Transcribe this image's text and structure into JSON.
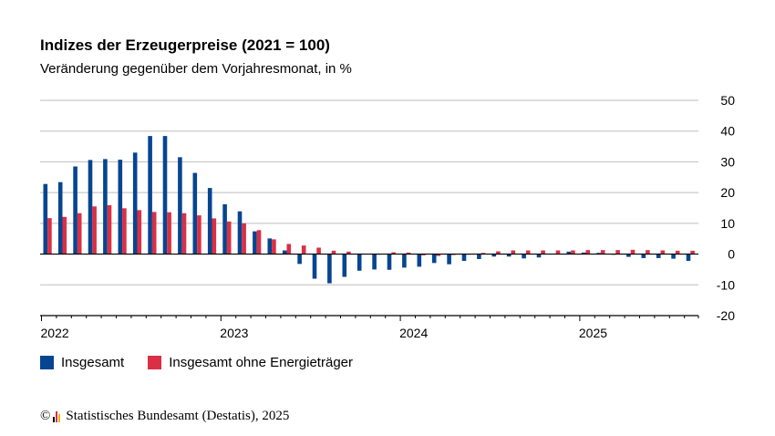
{
  "title": "Indizes der Erzeugerpreise (2021 = 100)",
  "subtitle": "Veränderung gegenüber dem Vorjahresmonat, in %",
  "legend": {
    "series1": "Insgesamt",
    "series2": "Insgesamt ohne Energieträger"
  },
  "source": {
    "symbol": "©",
    "text": "Statistisches Bundesamt (Destatis), 2025"
  },
  "colors": {
    "series1": "#064591",
    "series2": "#DA2F45",
    "grid": "#BEBEBE",
    "axis": "#000000"
  },
  "chart_data": {
    "type": "bar",
    "ylim": [
      -20,
      50
    ],
    "yticks": [
      -20,
      -10,
      0,
      10,
      20,
      30,
      40,
      50
    ],
    "grid": true,
    "legend_position": "bottom-left",
    "year_labels": [
      "2022",
      "2023",
      "2024",
      "2025"
    ],
    "categories": [
      "2022-01",
      "2022-02",
      "2022-03",
      "2022-04",
      "2022-05",
      "2022-06",
      "2022-07",
      "2022-08",
      "2022-09",
      "2022-10",
      "2022-11",
      "2022-12",
      "2023-01",
      "2023-02",
      "2023-03",
      "2023-04",
      "2023-05",
      "2023-06",
      "2023-07",
      "2023-08",
      "2023-09",
      "2023-10",
      "2023-11",
      "2023-12",
      "2024-01",
      "2024-02",
      "2024-03",
      "2024-04",
      "2024-05",
      "2024-06",
      "2024-07",
      "2024-08",
      "2024-09",
      "2024-10",
      "2024-11",
      "2024-12",
      "2025-01",
      "2025-02",
      "2025-03",
      "2025-04",
      "2025-05",
      "2025-06",
      "2025-07",
      "2025-08"
    ],
    "series": [
      {
        "name": "Insgesamt",
        "values": [
          22.8,
          23.4,
          28.5,
          30.6,
          30.9,
          30.7,
          33.0,
          38.4,
          38.4,
          31.5,
          26.4,
          21.5,
          16.2,
          13.9,
          7.4,
          5.1,
          1.2,
          -3.2,
          -8.0,
          -9.5,
          -7.4,
          -5.4,
          -5.0,
          -5.1,
          -4.4,
          -4.1,
          -2.9,
          -3.3,
          -2.2,
          -1.6,
          -0.8,
          -0.8,
          -1.4,
          -1.1,
          0.1,
          0.8,
          0.5,
          0.4,
          -0.2,
          -0.9,
          -1.3,
          -1.3,
          -1.5,
          -2.2
        ]
      },
      {
        "name": "Insgesamt ohne Energieträger",
        "values": [
          11.7,
          12.1,
          13.3,
          15.5,
          15.9,
          14.9,
          14.3,
          13.7,
          13.6,
          13.3,
          12.6,
          11.6,
          10.6,
          10.0,
          7.8,
          4.8,
          3.3,
          2.8,
          2.1,
          1.1,
          0.8,
          0.1,
          0.0,
          0.6,
          0.5,
          -0.4,
          -0.6,
          -0.3,
          0.0,
          0.4,
          0.9,
          1.2,
          1.2,
          1.2,
          1.2,
          1.2,
          1.3,
          1.3,
          1.3,
          1.4,
          1.3,
          1.2,
          1.1,
          1.1
        ]
      }
    ]
  }
}
